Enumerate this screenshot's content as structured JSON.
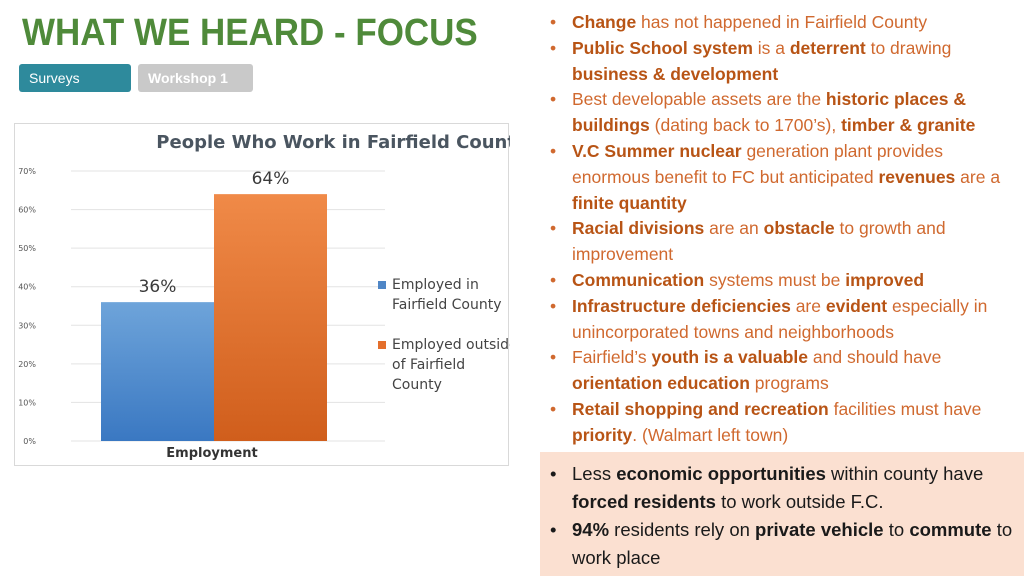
{
  "header": {
    "title": "WHAT WE HEARD - FOCUS",
    "tabs": [
      {
        "label": "Surveys",
        "color": "#2e8a9c"
      },
      {
        "label": "Workshop 1",
        "color": "#c9c9c9"
      }
    ]
  },
  "chart_data": {
    "type": "bar",
    "title": "People Who Work in Fairfield County",
    "xlabel": "Employment",
    "ylabel": "",
    "categories": [
      "Employment"
    ],
    "ylim": [
      0,
      70
    ],
    "yticks": [
      "0%",
      "10%",
      "20%",
      "30%",
      "40%",
      "50%",
      "60%",
      "70%"
    ],
    "grid": true,
    "legend_position": "right",
    "series": [
      {
        "name": "Employed in Fairfield County",
        "values": [
          36
        ],
        "label": "36%",
        "color": "#4f86c6"
      },
      {
        "name": "Employed outside of Fairfield County",
        "values": [
          64
        ],
        "label": "64%",
        "color": "#e46f2c"
      }
    ]
  },
  "findings": [
    [
      {
        "t": "Change",
        "b": true
      },
      {
        "t": " has not happened in Fairfield County",
        "b": false
      }
    ],
    [
      {
        "t": "Public School system",
        "b": true
      },
      {
        "t": " is a ",
        "b": false
      },
      {
        "t": "deterrent",
        "b": true
      },
      {
        "t": " to drawing ",
        "b": false
      },
      {
        "t": "business & development",
        "b": true
      }
    ],
    [
      {
        "t": "Best developable assets are the ",
        "b": false
      },
      {
        "t": "historic places & buildings",
        "b": true
      },
      {
        "t": " (dating back to 1700’s), ",
        "b": false
      },
      {
        "t": "timber & granite",
        "b": true
      }
    ],
    [
      {
        "t": "V.C Summer nuclear",
        "b": true
      },
      {
        "t": " generation plant provides enormous benefit to FC but anticipated ",
        "b": false
      },
      {
        "t": "revenues",
        "b": true
      },
      {
        "t": " are a ",
        "b": false
      },
      {
        "t": "finite quantity",
        "b": true
      }
    ],
    [
      {
        "t": "Racial divisions",
        "b": true
      },
      {
        "t": " are an ",
        "b": false
      },
      {
        "t": "obstacle",
        "b": true
      },
      {
        "t": " to growth and improvement",
        "b": false
      }
    ],
    [
      {
        "t": "Communication",
        "b": true
      },
      {
        "t": " systems must be ",
        "b": false
      },
      {
        "t": "improved",
        "b": true
      }
    ],
    [
      {
        "t": "Infrastructure deficiencies",
        "b": true
      },
      {
        "t": " are ",
        "b": false
      },
      {
        "t": "evident",
        "b": true
      },
      {
        "t": " especially in unincorporated towns and neighborhoods",
        "b": false
      }
    ],
    [
      {
        "t": "Fairfield’s ",
        "b": false
      },
      {
        "t": "youth is a valuable",
        "b": true
      },
      {
        "t": " and should have ",
        "b": false
      },
      {
        "t": "orientation education",
        "b": true
      },
      {
        "t": " programs",
        "b": false
      }
    ],
    [
      {
        "t": "Retail shopping and recreation",
        "b": true
      },
      {
        "t": " facilities must have ",
        "b": false
      },
      {
        "t": "priority",
        "b": true
      },
      {
        "t": ". (Walmart left town)",
        "b": false
      }
    ]
  ],
  "callout": [
    [
      {
        "t": "Less ",
        "b": false
      },
      {
        "t": "economic opportunities",
        "b": true
      },
      {
        "t": " within county have ",
        "b": false
      },
      {
        "t": "forced residents",
        "b": true
      },
      {
        "t": " to work outside F.C.",
        "b": false
      }
    ],
    [
      {
        "t": "94%",
        "b": true
      },
      {
        "t": " residents rely on ",
        "b": false
      },
      {
        "t": "private vehicle",
        "b": true
      },
      {
        "t": " to ",
        "b": false
      },
      {
        "t": "commute",
        "b": true
      },
      {
        "t": " to work place",
        "b": false
      }
    ]
  ]
}
